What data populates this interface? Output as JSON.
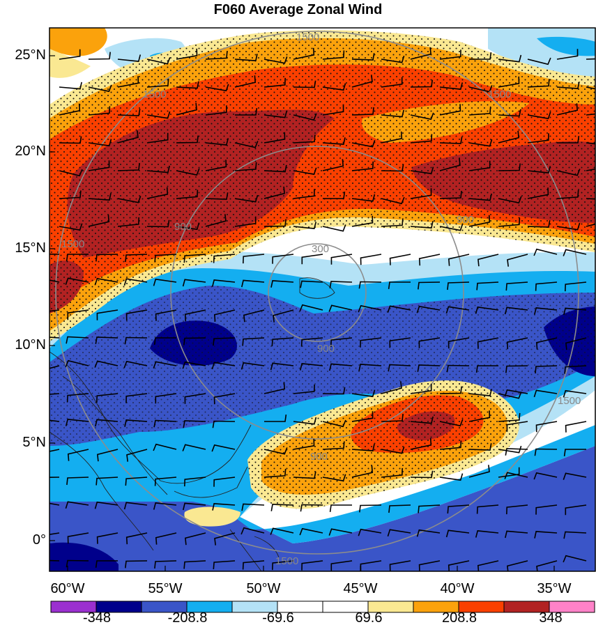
{
  "title": "F060 Average Zonal Wind",
  "lat_labels": [
    "25°N",
    "20°N",
    "15°N",
    "10°N",
    "5°N",
    "0°"
  ],
  "lon_labels": [
    "60°W",
    "55°W",
    "50°W",
    "45°W",
    "40°W",
    "35°W"
  ],
  "colorbar": {
    "colors": [
      "#9b30d0",
      "#00008b",
      "#3a55c8",
      "#14aef0",
      "#b4e2f6",
      "#ffffff",
      "#ffffff",
      "#fae892",
      "#fba20c",
      "#fa4000",
      "#b22222",
      "#ff82c8"
    ],
    "labels": [
      "-348",
      "-208.8",
      "-69.6",
      "69.6",
      "208.8",
      "348"
    ]
  },
  "range_rings": {
    "labels": [
      "300",
      "900",
      "900",
      "900",
      "900",
      "1500",
      "1500",
      "1500",
      "1500",
      "1500",
      "1500"
    ]
  },
  "fields": {
    "negative_deep": "#00008b",
    "negative_mid": "#3a55c8",
    "negative_light": "#14aef0",
    "negative_pale": "#b4e2f6",
    "positive_pale": "#fae892",
    "positive_orange": "#fba20c",
    "positive_red": "#fa4000",
    "positive_dark": "#b22222"
  }
}
